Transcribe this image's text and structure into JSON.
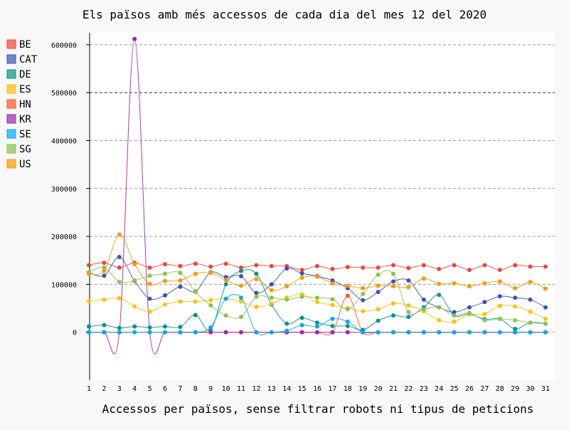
{
  "chart_data": {
    "type": "line",
    "title": "Els països amb més accessos de cada dia del mes 12 del 2020",
    "xlabel": "Accessos per països, sense filtrar robots ni tipus de peticions",
    "ylabel": "",
    "categories": [
      "1",
      "2",
      "3",
      "4",
      "5",
      "6",
      "7",
      "8",
      "9",
      "10",
      "11",
      "12",
      "13",
      "14",
      "15",
      "16",
      "17",
      "18",
      "19",
      "20",
      "21",
      "22",
      "23",
      "24",
      "25",
      "26",
      "27",
      "28",
      "29",
      "30",
      "31"
    ],
    "ylim": [
      -100000,
      625000
    ],
    "yticks": [
      0,
      100000,
      200000,
      300000,
      400000,
      500000,
      600000
    ],
    "ytick_labels": [
      "0",
      "100000",
      "200000",
      "300000",
      "400000",
      "500000",
      "600000"
    ],
    "major_gridline": 500000,
    "grid": "horizontal dashed",
    "legend_position": "left",
    "interpolation": "smooth",
    "series": [
      {
        "name": "BE",
        "color": "#F44336",
        "values": [
          140000,
          145000,
          135000,
          145000,
          135000,
          142000,
          138000,
          143000,
          137000,
          143000,
          135000,
          140000,
          138000,
          138000,
          130000,
          138000,
          132000,
          136000,
          135000,
          135000,
          140000,
          134000,
          140000,
          132000,
          140000,
          130000,
          140000,
          130000,
          140000,
          137000,
          137000
        ]
      },
      {
        "name": "CAT",
        "color": "#3F51B5",
        "values": [
          125000,
          118000,
          157000,
          107000,
          70000,
          77000,
          95000,
          85000,
          125000,
          115000,
          117000,
          82000,
          100000,
          133000,
          123000,
          117000,
          108000,
          92000,
          67000,
          84000,
          106000,
          108000,
          68000,
          52000,
          42000,
          52000,
          63000,
          75000,
          72000,
          68000,
          52000
        ]
      },
      {
        "name": "DE",
        "color": "#009688",
        "values": [
          12000,
          15000,
          9000,
          12000,
          10000,
          12000,
          11000,
          36000,
          5000,
          100000,
          128000,
          122000,
          58000,
          18000,
          30000,
          20000,
          13000,
          13000,
          5000,
          24000,
          35000,
          32000,
          52000,
          78000,
          35000,
          38000,
          27000,
          28000,
          7000,
          20000,
          18000
        ]
      },
      {
        "name": "ES",
        "color": "#FFC107",
        "values": [
          65000,
          68000,
          71000,
          54000,
          43000,
          58000,
          64000,
          64000,
          67000,
          70000,
          64000,
          53000,
          60000,
          72000,
          79000,
          63000,
          57000,
          50000,
          44000,
          48000,
          60000,
          56000,
          44000,
          25000,
          22000,
          37000,
          38000,
          55000,
          54000,
          43000,
          28000
        ]
      },
      {
        "name": "HN",
        "color": "#FF5722",
        "values": [
          0,
          0,
          0,
          0,
          0,
          0,
          0,
          0,
          0,
          0,
          0,
          0,
          0,
          0,
          0,
          0,
          0,
          76000,
          0,
          0,
          0,
          0,
          0,
          0,
          0,
          0,
          0,
          0,
          0,
          0,
          0
        ]
      },
      {
        "name": "KR",
        "color": "#9C27B0",
        "values": [
          0,
          0,
          0,
          612000,
          0,
          0,
          0,
          0,
          0,
          0,
          0,
          0,
          0,
          0,
          0,
          0,
          0,
          0,
          0,
          0,
          0,
          0,
          0,
          0,
          0,
          0,
          0,
          0,
          0,
          0,
          0
        ]
      },
      {
        "name": "SE",
        "color": "#03A9F4",
        "values": [
          0,
          0,
          0,
          0,
          0,
          0,
          0,
          0,
          10000,
          70000,
          72000,
          0,
          0,
          3000,
          15000,
          12000,
          28000,
          22000,
          0,
          0,
          0,
          0,
          0,
          0,
          0,
          0,
          0,
          0,
          0,
          0,
          0
        ]
      },
      {
        "name": "SG",
        "color": "#8BC34A",
        "values": [
          125000,
          135000,
          105000,
          108000,
          118000,
          122000,
          124000,
          84000,
          56000,
          35000,
          32000,
          74000,
          72000,
          68000,
          74000,
          72000,
          69000,
          48000,
          80000,
          120000,
          122000,
          42000,
          48000,
          52000,
          35000,
          40000,
          25000,
          28000,
          25000,
          20000,
          18000
        ]
      },
      {
        "name": "US",
        "color": "#FF9800",
        "values": [
          122000,
          128000,
          204000,
          142000,
          101000,
          107000,
          108000,
          122000,
          124000,
          109000,
          97000,
          111000,
          88000,
          96000,
          114000,
          116000,
          102000,
          97000,
          92000,
          97000,
          96000,
          94000,
          112000,
          101000,
          102000,
          96000,
          102000,
          106000,
          92000,
          105000,
          91000
        ]
      }
    ]
  }
}
